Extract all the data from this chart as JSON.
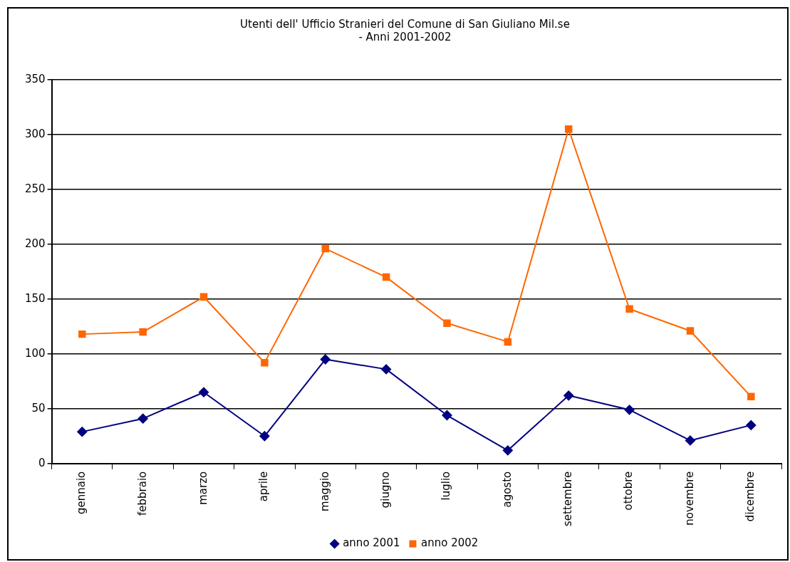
{
  "chart_data": {
    "type": "line",
    "title": "Utenti dell' Ufficio Stranieri del Comune di San Giuliano Mil.se\n- Anni 2001-2002",
    "categories": [
      "gennaio",
      "febbraio",
      "marzo",
      "aprile",
      "maggio",
      "giugno",
      "luglio",
      "agosto",
      "settembre",
      "ottobre",
      "novembre",
      "dicembre"
    ],
    "series": [
      {
        "name": "anno 2001",
        "color": "#000080",
        "marker": "diamond",
        "values": [
          29,
          41,
          65,
          25,
          95,
          86,
          44,
          12,
          62,
          49,
          21,
          35
        ]
      },
      {
        "name": "anno 2002",
        "color": "#ff6600",
        "marker": "square",
        "values": [
          118,
          120,
          152,
          92,
          196,
          170,
          128,
          111,
          305,
          141,
          121,
          61
        ]
      }
    ],
    "ylim": [
      0,
      350
    ],
    "yticks": [
      0,
      50,
      100,
      150,
      200,
      250,
      300,
      350
    ],
    "grid": "y",
    "legend": "bottom",
    "line_style": "solid"
  }
}
